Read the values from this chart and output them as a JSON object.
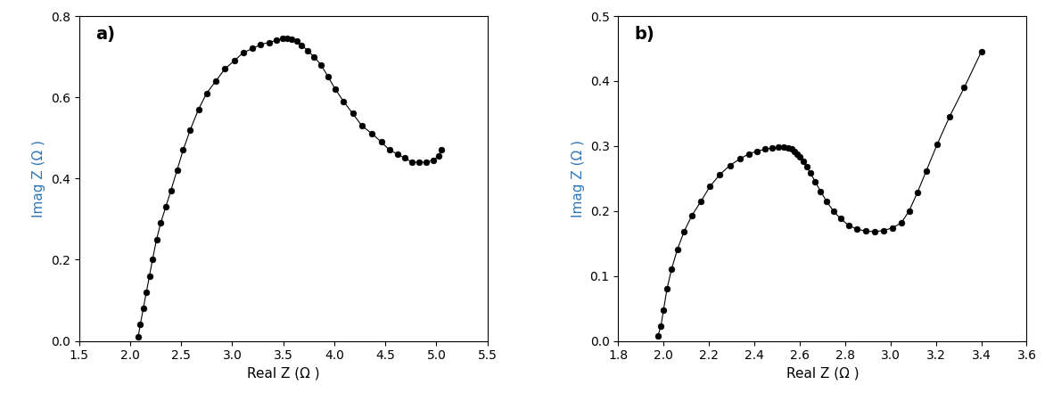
{
  "anode": {
    "real": [
      2.08,
      2.1,
      2.13,
      2.16,
      2.19,
      2.22,
      2.26,
      2.3,
      2.35,
      2.4,
      2.46,
      2.52,
      2.59,
      2.67,
      2.75,
      2.84,
      2.93,
      3.02,
      3.11,
      3.2,
      3.28,
      3.36,
      3.43,
      3.49,
      3.54,
      3.58,
      3.63,
      3.68,
      3.74,
      3.8,
      3.87,
      3.94,
      4.01,
      4.09,
      4.18,
      4.27,
      4.37,
      4.46,
      4.54,
      4.62,
      4.69,
      4.76,
      4.83,
      4.9,
      4.97,
      5.02,
      5.05
    ],
    "imag": [
      0.01,
      0.04,
      0.08,
      0.12,
      0.16,
      0.2,
      0.25,
      0.29,
      0.33,
      0.37,
      0.42,
      0.47,
      0.52,
      0.57,
      0.61,
      0.64,
      0.67,
      0.69,
      0.71,
      0.72,
      0.73,
      0.735,
      0.74,
      0.745,
      0.745,
      0.744,
      0.738,
      0.728,
      0.715,
      0.7,
      0.68,
      0.65,
      0.62,
      0.59,
      0.56,
      0.53,
      0.51,
      0.49,
      0.47,
      0.46,
      0.45,
      0.44,
      0.44,
      0.44,
      0.445,
      0.455,
      0.47
    ],
    "xlabel": "Real Z (Ω )",
    "ylabel": "Imag Z (Ω )",
    "xlim": [
      1.5,
      5.5
    ],
    "ylim": [
      0.0,
      0.8
    ],
    "xticks": [
      1.5,
      2.0,
      2.5,
      3.0,
      3.5,
      4.0,
      4.5,
      5.0,
      5.5
    ],
    "yticks": [
      0.0,
      0.2,
      0.4,
      0.6,
      0.8
    ],
    "label": "a)"
  },
  "cathode": {
    "real": [
      1.975,
      1.988,
      2.0,
      2.015,
      2.035,
      2.06,
      2.09,
      2.125,
      2.165,
      2.205,
      2.248,
      2.292,
      2.336,
      2.376,
      2.413,
      2.448,
      2.478,
      2.505,
      2.528,
      2.548,
      2.565,
      2.578,
      2.59,
      2.602,
      2.615,
      2.63,
      2.648,
      2.668,
      2.692,
      2.718,
      2.748,
      2.78,
      2.815,
      2.852,
      2.89,
      2.93,
      2.97,
      3.01,
      3.048,
      3.082,
      3.118,
      3.158,
      3.205,
      3.26,
      3.325,
      3.4
    ],
    "imag": [
      0.008,
      0.022,
      0.048,
      0.08,
      0.11,
      0.14,
      0.168,
      0.193,
      0.215,
      0.238,
      0.256,
      0.27,
      0.28,
      0.288,
      0.292,
      0.295,
      0.297,
      0.298,
      0.298,
      0.297,
      0.295,
      0.292,
      0.288,
      0.283,
      0.276,
      0.268,
      0.258,
      0.245,
      0.23,
      0.215,
      0.2,
      0.188,
      0.178,
      0.172,
      0.169,
      0.168,
      0.17,
      0.174,
      0.182,
      0.2,
      0.228,
      0.262,
      0.302,
      0.345,
      0.39,
      0.445
    ],
    "xlabel": "Real Z (Ω )",
    "ylabel": "Imag Z (Ω )",
    "xlim": [
      1.8,
      3.6
    ],
    "ylim": [
      0.0,
      0.5
    ],
    "xticks": [
      1.8,
      2.0,
      2.2,
      2.4,
      2.6,
      2.8,
      3.0,
      3.2,
      3.4,
      3.6
    ],
    "yticks": [
      0.0,
      0.1,
      0.2,
      0.3,
      0.4,
      0.5
    ],
    "label": "b)"
  },
  "line_color": "#000000",
  "marker_color": "#000000",
  "marker_size": 5.0,
  "line_width": 0.8,
  "label_color": "#2E75B6",
  "label_fontsize": 14,
  "tick_fontsize": 10,
  "axis_label_fontsize": 11,
  "background_color": "#ffffff"
}
